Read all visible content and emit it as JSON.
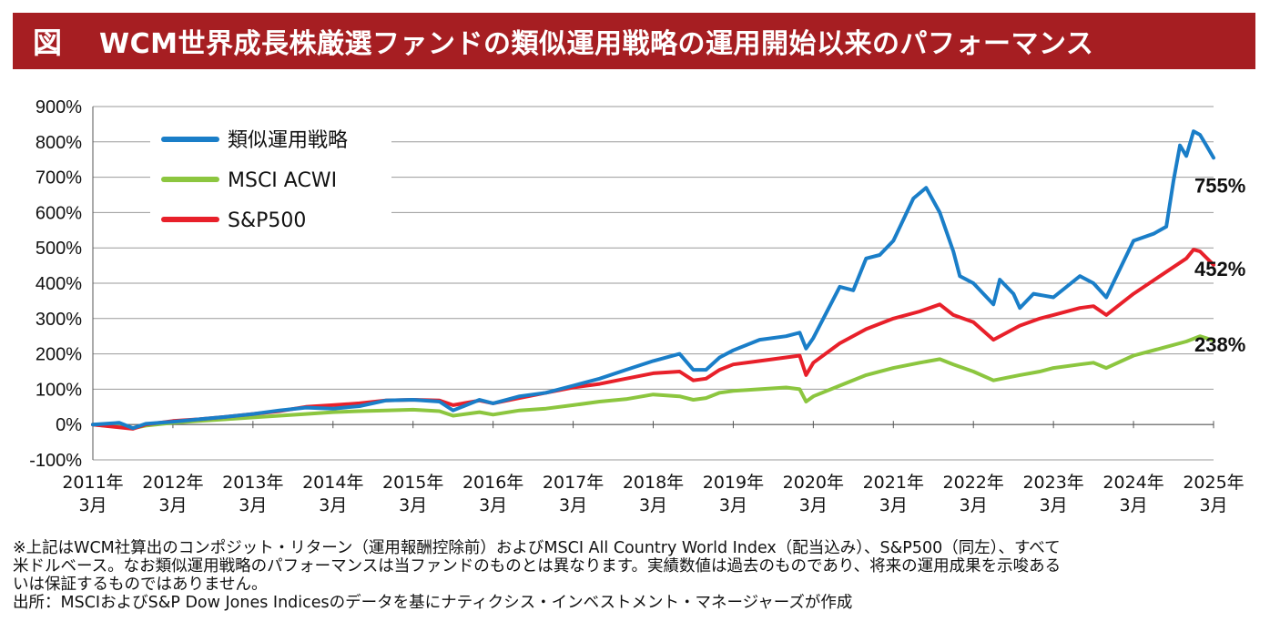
{
  "header": {
    "figure_label": "図",
    "title": "WCM世界成長株厳選ファンドの類似運用戦略の運用開始以来のパフォーマンス"
  },
  "chart_data": {
    "type": "line",
    "title": "WCM世界成長株厳選ファンドの類似運用戦略の運用開始以来のパフォーマンス",
    "xlabel": "",
    "ylabel": "",
    "ylim": [
      -100,
      900
    ],
    "yticks": [
      -100,
      0,
      100,
      200,
      300,
      400,
      500,
      600,
      700,
      800,
      900
    ],
    "ytick_labels": [
      "-100%",
      "0%",
      "100%",
      "200%",
      "300%",
      "400%",
      "500%",
      "600%",
      "700%",
      "800%",
      "900%"
    ],
    "xlim": [
      2011.17,
      2025.17
    ],
    "xticks": [
      {
        "year": "2011年",
        "month": "3月"
      },
      {
        "year": "2012年",
        "month": "3月"
      },
      {
        "year": "2013年",
        "month": "3月"
      },
      {
        "year": "2014年",
        "month": "3月"
      },
      {
        "year": "2015年",
        "month": "3月"
      },
      {
        "year": "2016年",
        "month": "3月"
      },
      {
        "year": "2017年",
        "month": "3月"
      },
      {
        "year": "2018年",
        "month": "3月"
      },
      {
        "year": "2019年",
        "month": "3月"
      },
      {
        "year": "2020年",
        "month": "3月"
      },
      {
        "year": "2021年",
        "month": "3月"
      },
      {
        "year": "2022年",
        "month": "3月"
      },
      {
        "year": "2023年",
        "month": "3月"
      },
      {
        "year": "2024年",
        "month": "3月"
      },
      {
        "year": "2025年",
        "month": "3月"
      }
    ],
    "grid": "horizontal",
    "legend_position": "top-left",
    "series": [
      {
        "name": "類似運用戦略",
        "color": "#1a7ec8",
        "end_label": "755%",
        "x": [
          2011.17,
          2011.5,
          2011.67,
          2011.83,
          2012.0,
          2012.17,
          2012.5,
          2012.83,
          2013.17,
          2013.5,
          2013.83,
          2014.17,
          2014.5,
          2014.83,
          2015.17,
          2015.5,
          2015.67,
          2016.0,
          2016.17,
          2016.5,
          2016.83,
          2017.17,
          2017.5,
          2017.83,
          2018.17,
          2018.5,
          2018.67,
          2018.83,
          2019.0,
          2019.17,
          2019.5,
          2019.83,
          2020.0,
          2020.08,
          2020.17,
          2020.5,
          2020.67,
          2020.83,
          2021.0,
          2021.17,
          2021.42,
          2021.58,
          2021.75,
          2021.92,
          2022.0,
          2022.17,
          2022.42,
          2022.5,
          2022.67,
          2022.75,
          2022.92,
          2023.17,
          2023.5,
          2023.67,
          2023.83,
          2024.0,
          2024.17,
          2024.42,
          2024.58,
          2024.67,
          2024.75,
          2024.83,
          2024.92,
          2025.0,
          2025.08,
          2025.17
        ],
        "values": [
          0,
          5,
          -10,
          2,
          5,
          8,
          15,
          22,
          30,
          40,
          48,
          45,
          52,
          68,
          70,
          65,
          40,
          70,
          60,
          80,
          90,
          110,
          130,
          155,
          180,
          200,
          155,
          155,
          190,
          210,
          240,
          250,
          260,
          215,
          245,
          390,
          380,
          470,
          480,
          520,
          640,
          670,
          600,
          490,
          420,
          400,
          340,
          410,
          370,
          330,
          370,
          360,
          420,
          400,
          360,
          440,
          520,
          540,
          560,
          690,
          790,
          760,
          830,
          820,
          790,
          755
        ]
      },
      {
        "name": "MSCI ACWI",
        "color": "#8cc63f",
        "end_label": "238%",
        "x": [
          2011.17,
          2011.67,
          2011.83,
          2012.17,
          2012.5,
          2012.83,
          2013.17,
          2013.5,
          2013.83,
          2014.17,
          2014.5,
          2014.83,
          2015.17,
          2015.5,
          2015.67,
          2016.0,
          2016.17,
          2016.5,
          2016.83,
          2017.17,
          2017.5,
          2017.83,
          2018.17,
          2018.5,
          2018.67,
          2018.83,
          2019.0,
          2019.17,
          2019.5,
          2019.83,
          2020.0,
          2020.08,
          2020.17,
          2020.5,
          2020.83,
          2021.17,
          2021.5,
          2021.75,
          2021.92,
          2022.17,
          2022.42,
          2022.75,
          2023.0,
          2023.17,
          2023.5,
          2023.67,
          2023.83,
          2024.17,
          2024.5,
          2024.83,
          2025.0,
          2025.17
        ],
        "values": [
          0,
          -10,
          -3,
          5,
          10,
          15,
          20,
          25,
          30,
          35,
          38,
          40,
          42,
          38,
          25,
          35,
          28,
          40,
          45,
          55,
          65,
          72,
          85,
          80,
          70,
          75,
          90,
          95,
          100,
          105,
          100,
          65,
          80,
          110,
          140,
          160,
          175,
          185,
          170,
          150,
          125,
          140,
          150,
          160,
          170,
          175,
          160,
          195,
          215,
          235,
          250,
          238
        ]
      },
      {
        "name": "S&P500",
        "color": "#e8202a",
        "end_label": "452%",
        "x": [
          2011.17,
          2011.67,
          2011.83,
          2012.17,
          2012.5,
          2012.83,
          2013.17,
          2013.5,
          2013.83,
          2014.17,
          2014.5,
          2014.83,
          2015.17,
          2015.5,
          2015.67,
          2016.0,
          2016.17,
          2016.5,
          2016.83,
          2017.17,
          2017.5,
          2017.83,
          2018.17,
          2018.5,
          2018.67,
          2018.83,
          2019.0,
          2019.17,
          2019.5,
          2019.83,
          2020.0,
          2020.08,
          2020.17,
          2020.5,
          2020.83,
          2021.17,
          2021.5,
          2021.75,
          2021.92,
          2022.17,
          2022.42,
          2022.75,
          2023.0,
          2023.17,
          2023.5,
          2023.67,
          2023.83,
          2024.17,
          2024.5,
          2024.83,
          2024.92,
          2025.0,
          2025.17
        ],
        "values": [
          0,
          -12,
          0,
          10,
          15,
          22,
          30,
          38,
          50,
          55,
          60,
          68,
          70,
          68,
          55,
          68,
          60,
          75,
          90,
          105,
          115,
          130,
          145,
          150,
          125,
          130,
          155,
          170,
          180,
          190,
          195,
          140,
          175,
          230,
          270,
          300,
          320,
          340,
          310,
          290,
          240,
          280,
          300,
          310,
          330,
          335,
          310,
          370,
          420,
          470,
          495,
          490,
          452
        ]
      }
    ]
  },
  "footnotes": {
    "line1": "※上記はWCM社算出のコンポジット・リターン（運用報酬控除前）およびMSCI All Country World Index（配当込み）、S&P500（同左）、すべて",
    "line2": "米ドルベース。なお類似運用戦略のパフォーマンスは当ファンドのものとは異なります。実績数値は過去のものであり、将来の運用成果を示唆ある",
    "line3": "いは保証するものではありません。",
    "source": "出所：MSCIおよびS&P Dow Jones Indicesのデータを基にナティクシス・インベストメント・マネージャーズが作成"
  }
}
